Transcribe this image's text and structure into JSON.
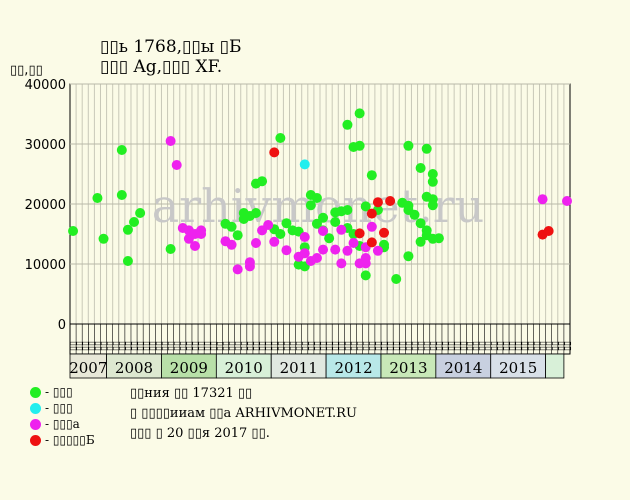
{
  "title_line1": "▯▯ь 1768,▯▯ы ▯Б",
  "title_line2": "▯▯▯ Ag,▯▯▯ XF.",
  "ylabel": "▯▯,▯▯",
  "notes": [
    "▯▯ния ▯▯ 17321 ▯▯",
    "▯ ▯▯▯▯ииам ▯▯а ARHIVMONET.RU",
    "▯▯▯ ▯ 20 ▯▯я 2017 ▯▯."
  ],
  "watermark": "arhivmonet.ru",
  "legend": [
    {
      "label": "- ▯▯▯",
      "color": "#22ee22"
    },
    {
      "label": "- ▯▯▯",
      "color": "#22eeee"
    },
    {
      "label": "- ▯▯▯а",
      "color": "#ee22ee"
    },
    {
      "label": "- ▯▯▯▯▯Б",
      "color": "#ee1111"
    }
  ],
  "chart_data": {
    "type": "scatter",
    "title": "▯▯ь 1768,▯▯ы ▯Б",
    "subtitle": "▯▯▯ Ag,▯▯▯ XF.",
    "ylabel": "▯▯,▯▯",
    "ylim": [
      0,
      40000
    ],
    "yticks": [
      0,
      10000,
      20000,
      30000,
      40000
    ],
    "grid": true,
    "legend_position": "bottom-left",
    "slot_label": "▯▯",
    "slot_count": 81,
    "year_groups": [
      {
        "label": "2007",
        "start": 0,
        "count": 6,
        "color": "#e8e8d8"
      },
      {
        "label": "2008",
        "start": 6,
        "count": 9,
        "color": "#dde8d0"
      },
      {
        "label": "2009",
        "start": 15,
        "count": 9,
        "color": "#b8e0a8"
      },
      {
        "label": "2010",
        "start": 24,
        "count": 9,
        "color": "#d8f0d8"
      },
      {
        "label": "2011",
        "start": 33,
        "count": 9,
        "color": "#e0e8e0"
      },
      {
        "label": "2012",
        "start": 42,
        "count": 9,
        "color": "#b8e8e8"
      },
      {
        "label": "2013",
        "start": 51,
        "count": 9,
        "color": "#c8e8b8"
      },
      {
        "label": "2014",
        "start": 60,
        "count": 9,
        "color": "#c8d0e0"
      },
      {
        "label": "2015",
        "start": 69,
        "count": 9,
        "color": "#d8e0e8"
      },
      {
        "label": "",
        "start": 78,
        "count": 3,
        "color": "#d8f0d8"
      }
    ],
    "series": [
      {
        "color": "#22ee22",
        "points": [
          [
            0,
            15500
          ],
          [
            4,
            21000
          ],
          [
            5,
            14200
          ],
          [
            8,
            21500
          ],
          [
            8,
            29000
          ],
          [
            9,
            15700
          ],
          [
            9,
            10500
          ],
          [
            10,
            17000
          ],
          [
            11,
            18500
          ],
          [
            16,
            12500
          ],
          [
            25,
            16700
          ],
          [
            26,
            16200
          ],
          [
            27,
            14800
          ],
          [
            28,
            18500
          ],
          [
            28,
            17500
          ],
          [
            29,
            18000
          ],
          [
            30,
            23400
          ],
          [
            30,
            18500
          ],
          [
            31,
            23800
          ],
          [
            33,
            15800
          ],
          [
            34,
            31000
          ],
          [
            34,
            15000
          ],
          [
            35,
            16800
          ],
          [
            36,
            15600
          ],
          [
            37,
            9900
          ],
          [
            37,
            15400
          ],
          [
            38,
            9600
          ],
          [
            38,
            12800
          ],
          [
            39,
            21500
          ],
          [
            39,
            19800
          ],
          [
            40,
            21000
          ],
          [
            40,
            16700
          ],
          [
            41,
            17700
          ],
          [
            41,
            15600
          ],
          [
            42,
            14300
          ],
          [
            43,
            17000
          ],
          [
            43,
            18600
          ],
          [
            44,
            18800
          ],
          [
            45,
            19000
          ],
          [
            45,
            16000
          ],
          [
            45,
            33200
          ],
          [
            46,
            29500
          ],
          [
            46,
            15000
          ],
          [
            47,
            29700
          ],
          [
            47,
            35100
          ],
          [
            47,
            13000
          ],
          [
            48,
            19600
          ],
          [
            48,
            8100
          ],
          [
            49,
            24800
          ],
          [
            50,
            19000
          ],
          [
            51,
            12800
          ],
          [
            51,
            13200
          ],
          [
            53,
            7500
          ],
          [
            54,
            20200
          ],
          [
            55,
            19000
          ],
          [
            55,
            29700
          ],
          [
            55,
            11300
          ],
          [
            55,
            19700
          ],
          [
            56,
            18200
          ],
          [
            57,
            13700
          ],
          [
            57,
            26000
          ],
          [
            57,
            16800
          ],
          [
            58,
            15600
          ],
          [
            58,
            14800
          ],
          [
            58,
            29200
          ],
          [
            58,
            21200
          ],
          [
            59,
            14200
          ],
          [
            59,
            20800
          ],
          [
            59,
            19800
          ],
          [
            59,
            25000
          ],
          [
            59,
            23700
          ],
          [
            60,
            14300
          ]
        ]
      },
      {
        "color": "#22eeee",
        "points": [
          [
            38,
            26600
          ]
        ]
      },
      {
        "color": "#ee22ee",
        "points": [
          [
            16,
            30500
          ],
          [
            17,
            26500
          ],
          [
            18,
            16000
          ],
          [
            19,
            15600
          ],
          [
            19,
            14200
          ],
          [
            20,
            15000
          ],
          [
            20,
            13000
          ],
          [
            21,
            15000
          ],
          [
            21,
            15600
          ],
          [
            25,
            13800
          ],
          [
            26,
            13200
          ],
          [
            27,
            9100
          ],
          [
            29,
            10300
          ],
          [
            29,
            9600
          ],
          [
            30,
            13500
          ],
          [
            31,
            15600
          ],
          [
            32,
            16500
          ],
          [
            33,
            13700
          ],
          [
            35,
            12300
          ],
          [
            37,
            11200
          ],
          [
            38,
            14500
          ],
          [
            38,
            11800
          ],
          [
            39,
            10500
          ],
          [
            40,
            11000
          ],
          [
            41,
            15500
          ],
          [
            41,
            12400
          ],
          [
            43,
            12400
          ],
          [
            44,
            15700
          ],
          [
            44,
            10100
          ],
          [
            45,
            12200
          ],
          [
            46,
            13500
          ],
          [
            47,
            10100
          ],
          [
            48,
            11000
          ],
          [
            48,
            12800
          ],
          [
            48,
            10100
          ],
          [
            49,
            16200
          ],
          [
            50,
            12200
          ],
          [
            77,
            20800
          ],
          [
            83,
            20500
          ]
        ]
      },
      {
        "color": "#ee1111",
        "points": [
          [
            33,
            28600
          ],
          [
            47,
            15100
          ],
          [
            49,
            18400
          ],
          [
            49,
            13600
          ],
          [
            50,
            20300
          ],
          [
            51,
            15200
          ],
          [
            52,
            20500
          ],
          [
            77,
            14900
          ],
          [
            78,
            15500
          ]
        ]
      }
    ]
  }
}
